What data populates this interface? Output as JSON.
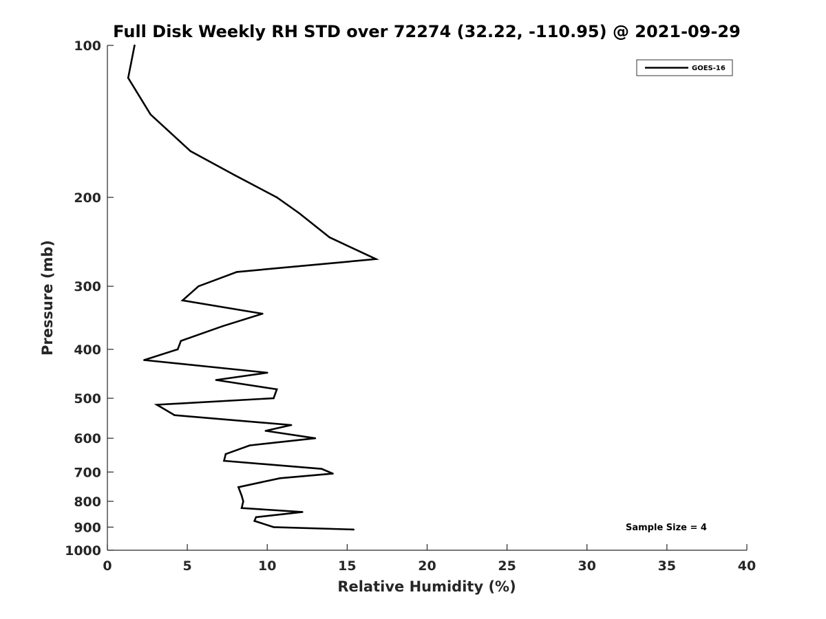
{
  "chart_data": {
    "type": "line",
    "title": "Full Disk Weekly RH STD over 72274 (32.22, -110.95) @ 2021-09-29",
    "xlabel": "Relative Humidity (%)",
    "ylabel": "Pressure (mb)",
    "xlim": [
      0,
      40
    ],
    "ylim": [
      100,
      1000
    ],
    "yscale": "log",
    "y_reversed": true,
    "xticks": [
      0,
      5,
      10,
      15,
      20,
      25,
      30,
      35,
      40
    ],
    "yticks": [
      100,
      200,
      300,
      400,
      500,
      600,
      700,
      800,
      900,
      1000
    ],
    "grid": false,
    "legend_position": "top-right",
    "annotation": "Sample Size = 4",
    "series": [
      {
        "name": "GOES-16",
        "color": "#000000",
        "x": [
          1.7,
          1.3,
          2.7,
          5.2,
          8.0,
          10.6,
          12.0,
          13.9,
          16.8,
          8.1,
          5.7,
          4.7,
          9.7,
          7.2,
          4.6,
          4.4,
          2.3,
          10.0,
          6.8,
          10.6,
          10.4,
          3.1,
          4.2,
          11.5,
          9.9,
          13.0,
          8.9,
          7.4,
          7.3,
          13.4,
          14.1,
          10.8,
          8.2,
          8.4,
          8.5,
          8.4,
          12.2,
          9.3,
          9.2,
          10.4,
          15.4
        ],
        "y": [
          100,
          116,
          137,
          162,
          181,
          200,
          215,
          240,
          265,
          281,
          300,
          320,
          340,
          360,
          385,
          400,
          420,
          445,
          460,
          480,
          500,
          515,
          540,
          565,
          580,
          600,
          620,
          645,
          665,
          690,
          705,
          720,
          750,
          780,
          800,
          825,
          840,
          860,
          875,
          900,
          910
        ]
      }
    ]
  }
}
